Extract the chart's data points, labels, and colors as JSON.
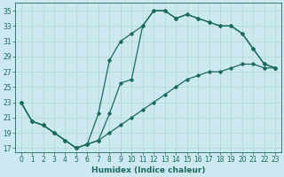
{
  "xlabel": "Humidex (Indice chaleur)",
  "background_color": "#cce8f0",
  "grid_color": "#b0d8cc",
  "line_color": "#1a6b5a",
  "xlim": [
    -0.5,
    23.5
  ],
  "ylim": [
    16.5,
    36
  ],
  "xticks": [
    0,
    1,
    2,
    3,
    4,
    5,
    6,
    7,
    8,
    9,
    10,
    11,
    12,
    13,
    14,
    15,
    16,
    17,
    18,
    19,
    20,
    21,
    22,
    23
  ],
  "yticks": [
    17,
    19,
    21,
    23,
    25,
    27,
    29,
    31,
    33,
    35
  ],
  "line1_x": [
    0,
    1,
    2,
    3,
    4,
    5,
    6,
    7,
    8,
    9,
    10,
    11,
    12,
    13,
    14,
    15,
    16,
    17,
    18,
    19,
    20,
    21,
    22,
    23
  ],
  "line1_y": [
    23,
    20.5,
    20,
    19,
    18,
    17,
    17.5,
    18,
    21.5,
    25.5,
    26,
    33,
    35,
    35,
    34,
    34.5,
    34,
    33.5,
    33,
    33,
    32,
    30,
    28,
    27.5
  ],
  "line2_x": [
    0,
    1,
    2,
    3,
    4,
    5,
    6,
    7,
    8,
    9,
    10,
    11,
    12,
    13,
    14,
    15,
    16,
    17,
    18,
    19,
    20,
    21,
    22,
    23
  ],
  "line2_y": [
    23,
    20.5,
    20,
    19,
    18,
    17,
    17.5,
    21.5,
    28.5,
    31,
    32,
    33,
    35,
    35,
    34,
    34.5,
    34,
    33.5,
    33,
    33,
    32,
    30,
    28,
    27.5
  ],
  "line3_x": [
    0,
    1,
    2,
    3,
    4,
    5,
    6,
    7,
    8,
    9,
    10,
    11,
    12,
    13,
    14,
    15,
    16,
    17,
    18,
    19,
    20,
    21,
    22,
    23
  ],
  "line3_y": [
    23,
    20.5,
    20,
    19,
    18,
    17,
    17.5,
    18,
    19,
    20,
    21,
    22,
    23,
    24,
    25,
    26,
    26.5,
    27,
    27,
    27.5,
    28,
    28,
    27.5,
    27.5
  ],
  "tick_fontsize": 5.5,
  "xlabel_fontsize": 6.5
}
